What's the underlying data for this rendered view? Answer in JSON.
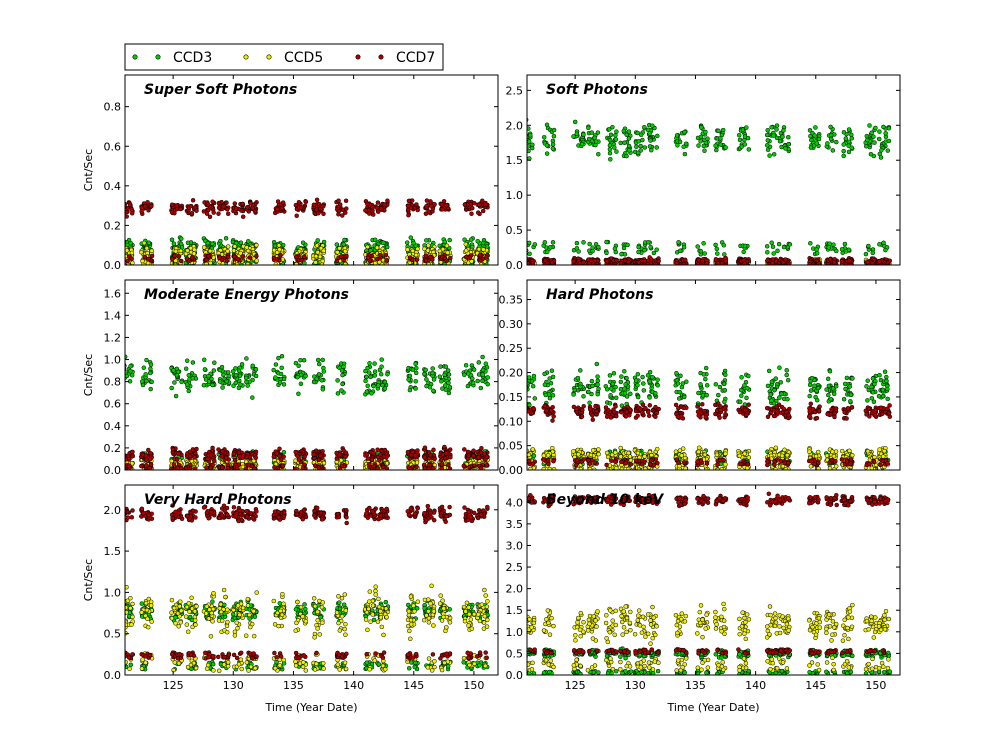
{
  "chart_data": {
    "type": "scatter",
    "legend": {
      "placement": "top-left",
      "entries": [
        {
          "name": "CCD3",
          "color": "#00cc00"
        },
        {
          "name": "CCD5",
          "color": "#eeee00"
        },
        {
          "name": "CCD7",
          "color": "#aa0000"
        }
      ]
    },
    "xlabel": "Time (Year Date)",
    "xlim": [
      121,
      152
    ],
    "xticks": [
      125,
      130,
      135,
      140,
      145,
      150
    ],
    "ylabel": "Cnt/Sec",
    "clusters": [
      121.2,
      122.8,
      125.3,
      126.5,
      128.0,
      129.2,
      130.4,
      131.5,
      133.8,
      135.6,
      137.1,
      139.0,
      141.4,
      142.4,
      144.9,
      146.3,
      147.6,
      149.6,
      150.7
    ],
    "panels": [
      {
        "title": "Super Soft Photons",
        "ylim": [
          0,
          0.96
        ],
        "yticks": [
          0.0,
          0.2,
          0.4,
          0.6,
          0.8
        ],
        "series": [
          {
            "name": "CCD3",
            "level": 0.09,
            "spread": 0.06,
            "low": 0.0
          },
          {
            "name": "CCD5",
            "level": 0.06,
            "spread": 0.05,
            "low": 0.0
          },
          {
            "name": "CCD7",
            "level": 0.29,
            "spread": 0.05,
            "low": 0.02
          }
        ]
      },
      {
        "title": "Soft Photons",
        "ylim": [
          0,
          2.72
        ],
        "yticks": [
          0.0,
          0.5,
          1.0,
          1.5,
          2.0,
          2.5
        ],
        "series": [
          {
            "name": "CCD3",
            "level": 1.8,
            "spread": 0.3,
            "low": 0.15
          },
          {
            "name": "CCD5",
            "level": 0.05,
            "spread": 0.04,
            "low": 0.0
          },
          {
            "name": "CCD7",
            "level": 0.06,
            "spread": 0.05,
            "low": 0.0
          }
        ]
      },
      {
        "title": "Moderate Energy Photons",
        "ylim": [
          0,
          1.72
        ],
        "yticks": [
          0.0,
          0.2,
          0.4,
          0.6,
          0.8,
          1.0,
          1.2,
          1.4,
          1.6
        ],
        "series": [
          {
            "name": "CCD3",
            "level": 0.85,
            "spread": 0.2,
            "low": 0.05
          },
          {
            "name": "CCD5",
            "level": 0.06,
            "spread": 0.05,
            "low": 0.0
          },
          {
            "name": "CCD7",
            "level": 0.14,
            "spread": 0.07,
            "low": 0.01
          }
        ]
      },
      {
        "title": "Hard Photons",
        "ylim": [
          0,
          0.39
        ],
        "yticks": [
          0.0,
          0.05,
          0.1,
          0.15,
          0.2,
          0.25,
          0.3,
          0.35
        ],
        "series": [
          {
            "name": "CCD3",
            "level": 0.17,
            "spread": 0.05,
            "low": 0.01
          },
          {
            "name": "CCD5",
            "level": 0.03,
            "spread": 0.02,
            "low": 0.0
          },
          {
            "name": "CCD7",
            "level": 0.12,
            "spread": 0.02,
            "low": 0.01
          }
        ]
      },
      {
        "title": "Very Hard Photons",
        "ylim": [
          0,
          2.3
        ],
        "yticks": [
          0.0,
          0.5,
          1.0,
          1.5,
          2.0
        ],
        "series": [
          {
            "name": "CCD3",
            "level": 0.78,
            "spread": 0.15,
            "low": 0.07
          },
          {
            "name": "CCD5",
            "level": 0.75,
            "spread": 0.35,
            "low": 0.05
          },
          {
            "name": "CCD7",
            "level": 1.95,
            "spread": 0.12,
            "low": 0.2
          }
        ]
      },
      {
        "title": "Beyond 10 keV",
        "ylim": [
          0,
          4.4
        ],
        "yticks": [
          0.0,
          0.5,
          1.0,
          1.5,
          2.0,
          2.5,
          3.0,
          3.5,
          4.0
        ],
        "series": [
          {
            "name": "CCD3",
            "level": 0.5,
            "spread": 0.12,
            "low": 0.02
          },
          {
            "name": "CCD5",
            "level": 1.2,
            "spread": 0.5,
            "low": 0.1
          },
          {
            "name": "CCD7",
            "level": 4.05,
            "spread": 0.15,
            "low": 0.5
          }
        ]
      }
    ]
  }
}
